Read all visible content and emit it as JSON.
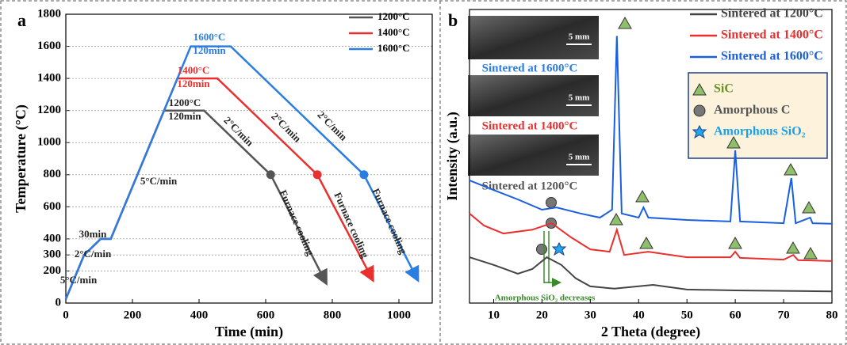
{
  "chart_data": [
    {
      "type": "line",
      "label": "a",
      "xlabel": "Time (min)",
      "ylabel": "Temperature (°C)",
      "xlim": [
        0,
        1100
      ],
      "ylim": [
        0,
        1800
      ],
      "xticks": [
        0,
        200,
        400,
        600,
        800,
        1000
      ],
      "yticks": [
        0,
        200,
        300,
        400,
        600,
        800,
        1000,
        1200,
        1400,
        1600,
        1800
      ],
      "grid": true,
      "series": [
        {
          "name": "1200°C",
          "color": "#555555",
          "x": [
            0,
            55,
            105,
            135,
            295,
            415,
            615,
            780
          ],
          "values": [
            25,
            300,
            400,
            400,
            1200,
            1200,
            800,
            130
          ]
        },
        {
          "name": "1400°C",
          "color": "#e8302e",
          "x": [
            0,
            55,
            105,
            135,
            335,
            455,
            755,
            920
          ],
          "values": [
            25,
            300,
            400,
            400,
            1400,
            1400,
            800,
            150
          ]
        },
        {
          "name": "1600°C",
          "color": "#2a7de1",
          "x": [
            0,
            55,
            105,
            135,
            375,
            495,
            895,
            1055
          ],
          "values": [
            25,
            300,
            400,
            400,
            1600,
            1600,
            800,
            150
          ]
        }
      ],
      "annotations": [
        {
          "text": "1600°C",
          "color": "#2a7de1"
        },
        {
          "text": "120min",
          "color": "#2a7de1"
        },
        {
          "text": "1400°C",
          "color": "#e8302e"
        },
        {
          "text": "120min",
          "color": "#e8302e"
        },
        {
          "text": "1200°C",
          "color": "#222222"
        },
        {
          "text": "120min",
          "color": "#222222"
        },
        {
          "text": "2°C/min",
          "color": "#222222"
        },
        {
          "text": "2°C/min",
          "color": "#222222"
        },
        {
          "text": "2°C/min",
          "color": "#222222"
        },
        {
          "text": "Furnace cooling",
          "color": "#222222"
        },
        {
          "text": "Furnace cooling",
          "color": "#222222"
        },
        {
          "text": "Furnace cooling",
          "color": "#222222"
        },
        {
          "text": "5°C/min",
          "color": "#222222"
        },
        {
          "text": "30min",
          "color": "#222222"
        },
        {
          "text": "2°C/min",
          "color": "#222222"
        },
        {
          "text": "5°C/min",
          "color": "#222222"
        }
      ]
    },
    {
      "type": "line",
      "label": "b",
      "xlabel": "2 Theta (degree)",
      "ylabel": "Intensity (a.u.)",
      "xlim": [
        5,
        80
      ],
      "ylim": [
        0,
        100
      ],
      "xticks": [
        10,
        20,
        30,
        40,
        50,
        60,
        70,
        80
      ],
      "series": [
        {
          "name": "Sintered at 1200°C",
          "color": "#444444",
          "x": [
            5,
            10,
            15,
            18,
            21,
            24,
            27,
            30,
            35,
            43,
            50,
            60,
            80
          ],
          "values": [
            15.6,
            13,
            10,
            11.6,
            15.6,
            13,
            8.4,
            5.7,
            4.9,
            6.2,
            4.6,
            4.3,
            4
          ]
        },
        {
          "name": "Sintered at 1400°C",
          "color": "#e8302e",
          "x": [
            5,
            8,
            12,
            18,
            22,
            26,
            30,
            34,
            35.5,
            37,
            42,
            50,
            59,
            60,
            61,
            70,
            72,
            73,
            80
          ],
          "values": [
            30.5,
            26.4,
            23.7,
            25,
            27.2,
            22.4,
            18.3,
            17.5,
            25,
            16.4,
            17.5,
            15.6,
            15.6,
            17.5,
            15.4,
            14.8,
            16.4,
            14.6,
            14.3
          ]
        },
        {
          "name": "Sintered at 1600°C",
          "color": "#1a5fe0",
          "x": [
            5,
            10,
            15,
            20,
            23,
            28,
            32,
            34.5,
            35.5,
            36.5,
            40,
            41,
            42,
            50,
            59,
            60,
            61,
            70,
            71.6,
            72.5,
            75.5,
            76,
            80
          ],
          "values": [
            41.8,
            38.5,
            35.3,
            31.8,
            32.6,
            30.5,
            29.1,
            31.8,
            91,
            30.5,
            29.1,
            32.6,
            29.1,
            28.3,
            27.8,
            52,
            27.8,
            27.2,
            42.6,
            27.2,
            29.1,
            27.2,
            27
          ]
        }
      ],
      "phase_legend": [
        "SiC",
        "Amorphous C",
        "Amorphous SiO₂"
      ],
      "inset_captions": [
        "Sintered at 1600°C",
        "Sintered at 1400°C",
        "Sintered at 1200°C"
      ],
      "scale_bars": [
        "5 mm",
        "5 mm",
        "5 mm"
      ],
      "annotation": "Amorphous SiO₂ decreases"
    }
  ]
}
